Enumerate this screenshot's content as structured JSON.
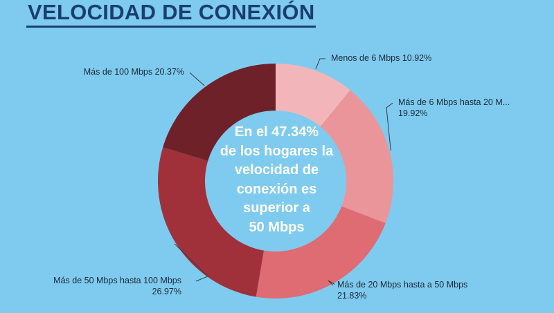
{
  "title": "VELOCIDAD DE CONEXIÓN",
  "center_text_lines": [
    "En el 47.34%",
    "de los hogares la",
    "velocidad de",
    "conexión es",
    "superior a",
    "50 Mbps"
  ],
  "colors": {
    "background": "#7ecbef",
    "title": "#1a3e6e"
  },
  "chart_data": {
    "type": "pie",
    "subtype": "donut",
    "categories": [
      "Menos de 6 Mbps",
      "Más de 6 Mbps hasta 20 M...",
      "Más de 20 Mbps hasta a 50 Mbps",
      "Más de 50 Mbps hasta 100 Mbps",
      "Más de 100 Mbps"
    ],
    "values": [
      10.92,
      19.92,
      21.83,
      26.97,
      20.37
    ],
    "value_labels": [
      "10.92%",
      "19.92%",
      "21.83%",
      "26.97%",
      "20.37%"
    ],
    "colors": [
      "#f2b6ba",
      "#e9959a",
      "#df6b73",
      "#a0313b",
      "#6e2128"
    ],
    "legend": "none"
  }
}
